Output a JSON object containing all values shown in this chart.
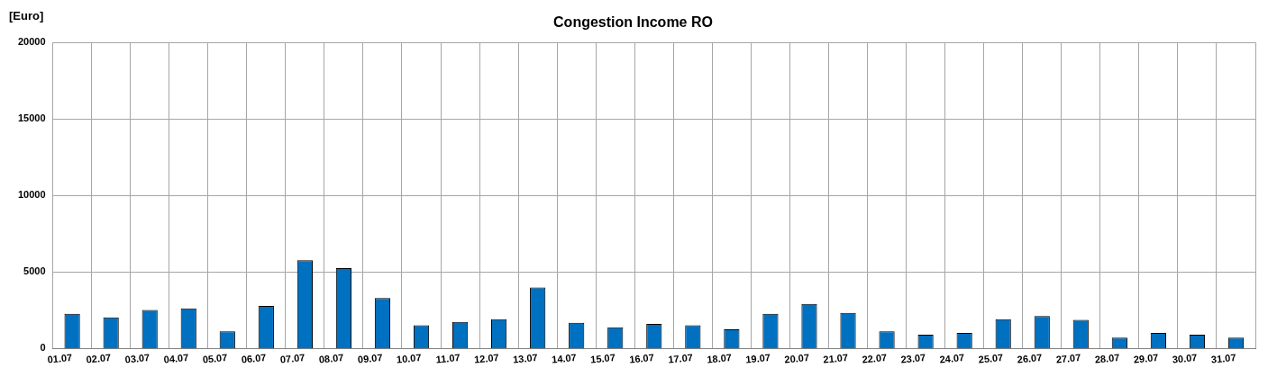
{
  "chart_data": {
    "type": "bar",
    "title": "Congestion Income RO",
    "ylabel": "[Euro]",
    "categories": [
      "01.07",
      "02.07",
      "03.07",
      "04.07",
      "05.07",
      "06.07",
      "07.07",
      "08.07",
      "09.07",
      "10.07",
      "11.07",
      "12.07",
      "13.07",
      "14.07",
      "15.07",
      "16.07",
      "17.07",
      "18.07",
      "19.07",
      "20.07",
      "21.07",
      "22.07",
      "23.07",
      "24.07",
      "25.07",
      "26.07",
      "27.07",
      "28.07",
      "29.07",
      "30.07",
      "31.07"
    ],
    "values": [
      2270,
      2040,
      2530,
      2630,
      1130,
      2790,
      5770,
      5260,
      3300,
      1520,
      1740,
      1920,
      3990,
      1680,
      1400,
      1620,
      1520,
      1260,
      2270,
      2920,
      2330,
      1130,
      910,
      1030,
      1920,
      2130,
      1880,
      710,
      1030,
      910,
      710
    ],
    "color": "#0070c0",
    "ylim": [
      0,
      20000
    ],
    "yticks": [
      0,
      5000,
      10000,
      15000,
      20000
    ],
    "grid": true,
    "legend": false
  }
}
